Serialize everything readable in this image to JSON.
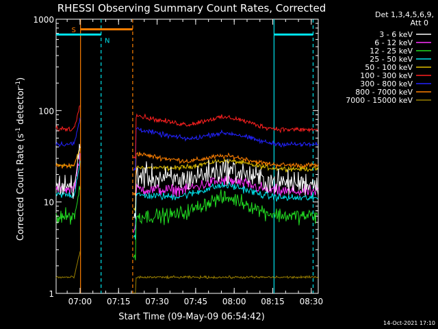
{
  "chart_data": {
    "type": "line",
    "title": "RHESSI Observing Summary Count Rates, Corrected",
    "xlabel": "Start Time (09-May-09 06:54:42)",
    "ylabel": "Corrected Count Rate (s⁻¹ detector⁻¹)",
    "ylabel_main": "Corrected Count Rate (s",
    "ylabel_sup1": "-1",
    "ylabel_mid": " detector",
    "ylabel_sup2": "-1",
    "ylabel_end": ")",
    "yscale": "log",
    "ylim": [
      1,
      1000
    ],
    "xlim_minutes": [
      -4,
      98
    ],
    "x_ticks": [
      {
        "label": "07:00",
        "minutes": 5.3
      },
      {
        "label": "07:15",
        "minutes": 20.3
      },
      {
        "label": "07:30",
        "minutes": 35.3
      },
      {
        "label": "07:45",
        "minutes": 50.3
      },
      {
        "label": "08:00",
        "minutes": 65.3
      },
      {
        "label": "08:15",
        "minutes": 80.3
      },
      {
        "label": "08:30",
        "minutes": 95.3
      }
    ],
    "y_ticks": [
      {
        "label": "1",
        "value": 1
      },
      {
        "label": "10",
        "value": 10
      },
      {
        "label": "100",
        "value": 100
      },
      {
        "label": "1000",
        "value": 1000
      }
    ],
    "legend": {
      "placement": "top-right, outside plot",
      "header": [
        "Det 1,3,4,5,6,9,",
        "Att 0"
      ]
    },
    "series": [
      {
        "name": "3 - 6 keV",
        "color": "#ffffff",
        "before": 15,
        "pre_gap_peak": 40,
        "after_start": 20,
        "bump": 22,
        "end": 16,
        "noise": 0.2
      },
      {
        "name": "6 - 12 keV",
        "color": "#ff33ff",
        "before": 14,
        "pre_gap_peak": 35,
        "after_start": 14,
        "bump": 17,
        "end": 13,
        "noise": 0.1
      },
      {
        "name": "12 - 25 keV",
        "color": "#22dd22",
        "before": 7,
        "pre_gap_peak": 15,
        "after_start": 7,
        "bump": 11,
        "end": 7,
        "noise": 0.12
      },
      {
        "name": "25 - 50 keV",
        "color": "#00e5ee",
        "before": 12,
        "pre_gap_peak": 30,
        "after_start": 12,
        "bump": 15,
        "end": 11,
        "noise": 0.06
      },
      {
        "name": "50 - 100 keV",
        "color": "#e0c000",
        "before": 25,
        "pre_gap_peak": 40,
        "after_start": 24,
        "bump": 28,
        "end": 23,
        "noise": 0.04
      },
      {
        "name": "100 - 300 keV",
        "color": "#ff2020",
        "before": 63,
        "pre_gap_peak": 125,
        "after_start": 92,
        "bump": 82,
        "end": 61,
        "noise": 0.04
      },
      {
        "name": "300 - 800 keV",
        "color": "#2222ff",
        "before": 43,
        "pre_gap_peak": 85,
        "after_start": 66,
        "bump": 55,
        "end": 42,
        "noise": 0.04
      },
      {
        "name": "800 - 7000 keV",
        "color": "#ff8000",
        "before": 25,
        "pre_gap_peak": 40,
        "after_start": 35,
        "bump": 31,
        "end": 25,
        "noise": 0.04
      },
      {
        "name": "7000 - 15000 keV",
        "color": "#9b8000",
        "before": 1.5,
        "pre_gap_peak": 3,
        "after_start": 1.5,
        "bump": 1.5,
        "end": 1.5,
        "noise": 0.02
      }
    ],
    "segments": {
      "data_before_minutes": [
        -4,
        5.5
      ],
      "data_after_minutes": [
        25.8,
        98
      ],
      "bump_center_minutes": 62,
      "bump_width_minutes": 12
    },
    "flag_bars": [
      {
        "label": "S",
        "color": "#ff8000",
        "start_minutes": 5.5,
        "end_minutes": 25.8,
        "level": 775
      },
      {
        "label": "N",
        "color": "#00e5ee",
        "start_minutes": -4,
        "end_minutes": 13.5,
        "level": 680
      },
      {
        "label": "",
        "color": "#00e5ee",
        "start_minutes": 80.8,
        "end_minutes": 96,
        "level": 680
      }
    ],
    "vertical_lines": [
      {
        "minutes": 5.5,
        "color": "#ff8000",
        "dashed": false
      },
      {
        "minutes": 13.5,
        "color": "#00e5ee",
        "dashed": true
      },
      {
        "minutes": 25.8,
        "color": "#ff8000",
        "dashed": true
      },
      {
        "minutes": 80.8,
        "color": "#00e5ee",
        "dashed": false
      },
      {
        "minutes": 96,
        "color": "#00e5ee",
        "dashed": true
      }
    ],
    "grid": false
  },
  "footer_date": "14-Oct-2021 17:10"
}
